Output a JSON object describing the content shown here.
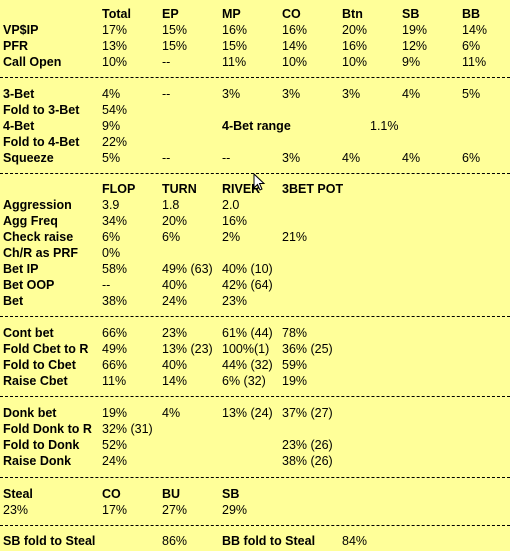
{
  "positions_header": {
    "cols": [
      "Total",
      "EP",
      "MP",
      "CO",
      "Btn",
      "SB",
      "BB"
    ],
    "rows": [
      {
        "label": "VP$IP",
        "values": [
          "17%",
          "15%",
          "16%",
          "16%",
          "20%",
          "19%",
          "14%"
        ]
      },
      {
        "label": "PFR",
        "values": [
          "13%",
          "15%",
          "15%",
          "14%",
          "16%",
          "12%",
          "6%"
        ]
      },
      {
        "label": "Call Open",
        "values": [
          "10%",
          "--",
          "11%",
          "10%",
          "10%",
          "9%",
          "11%"
        ]
      }
    ]
  },
  "preflop": {
    "three_bet": {
      "label": "3-Bet",
      "values": [
        "4%",
        "--",
        "3%",
        "3%",
        "3%",
        "4%",
        "5%"
      ]
    },
    "fold_to_3bet": {
      "label": "Fold to 3-Bet",
      "value": "54%"
    },
    "four_bet": {
      "label": "4-Bet",
      "value": "9%",
      "range_label": "4-Bet range",
      "range_value": "1.1%"
    },
    "fold_to_4bet": {
      "label": "Fold to 4-Bet",
      "value": "22%"
    },
    "squeeze": {
      "label": "Squeeze",
      "values": [
        "5%",
        "--",
        "--",
        "3%",
        "4%",
        "4%",
        "6%"
      ]
    }
  },
  "postflop": {
    "cols": [
      "FLOP",
      "TURN",
      "RIVER",
      "3BET POT"
    ],
    "rows": [
      {
        "label": "Aggression",
        "values": [
          "3.9",
          "1.8",
          "2.0",
          ""
        ]
      },
      {
        "label": "Agg Freq",
        "values": [
          "34%",
          "20%",
          "16%",
          ""
        ]
      },
      {
        "label": "Check raise",
        "values": [
          "6%",
          "6%",
          "2%",
          "21%"
        ]
      },
      {
        "label": "Ch/R as PRF",
        "values": [
          "0%",
          "",
          "",
          ""
        ]
      },
      {
        "label": "Bet IP",
        "values": [
          "58%",
          "49%  (63)",
          "40%  (10)",
          ""
        ]
      },
      {
        "label": "Bet OOP",
        "values": [
          "--",
          "40%",
          "42%  (64)",
          ""
        ]
      },
      {
        "label": "Bet",
        "values": [
          "38%",
          "24%",
          "23%",
          ""
        ]
      }
    ]
  },
  "cbet": {
    "rows": [
      {
        "label": "Cont bet",
        "values": [
          "66%",
          "23%",
          "61%  (44)",
          "78%"
        ]
      },
      {
        "label": "Fold Cbet to R",
        "values": [
          "49%",
          "13%  (23)",
          "100%(1)",
          "36%  (25)"
        ]
      },
      {
        "label": "Fold to Cbet",
        "values": [
          "66%",
          "40%",
          "44%  (32)",
          "59%"
        ]
      },
      {
        "label": "Raise Cbet",
        "values": [
          "11%",
          "14%",
          "6%    (32)",
          "19%"
        ]
      }
    ]
  },
  "donk": {
    "rows": [
      {
        "label": "Donk bet",
        "values": [
          "19%",
          "4%",
          "13%  (24)",
          "37%  (27)"
        ]
      },
      {
        "label": "Fold Donk to R",
        "values": [
          "32%  (31)",
          "",
          "",
          ""
        ]
      },
      {
        "label": "Fold to Donk",
        "values": [
          "52%",
          "",
          "",
          "23%  (26)"
        ]
      },
      {
        "label": "Raise Donk",
        "values": [
          "24%",
          "",
          "",
          "38%  (26)"
        ]
      }
    ]
  },
  "steal": {
    "header_label": "Steal",
    "cols": [
      "CO",
      "BU",
      "SB"
    ],
    "total": "23%",
    "values": [
      "17%",
      "27%",
      "29%"
    ]
  },
  "steal_defense": {
    "sb_label": "SB fold to Steal",
    "sb_value": "86%",
    "bb_label": "BB fold to Steal",
    "bb_value": "84%"
  }
}
